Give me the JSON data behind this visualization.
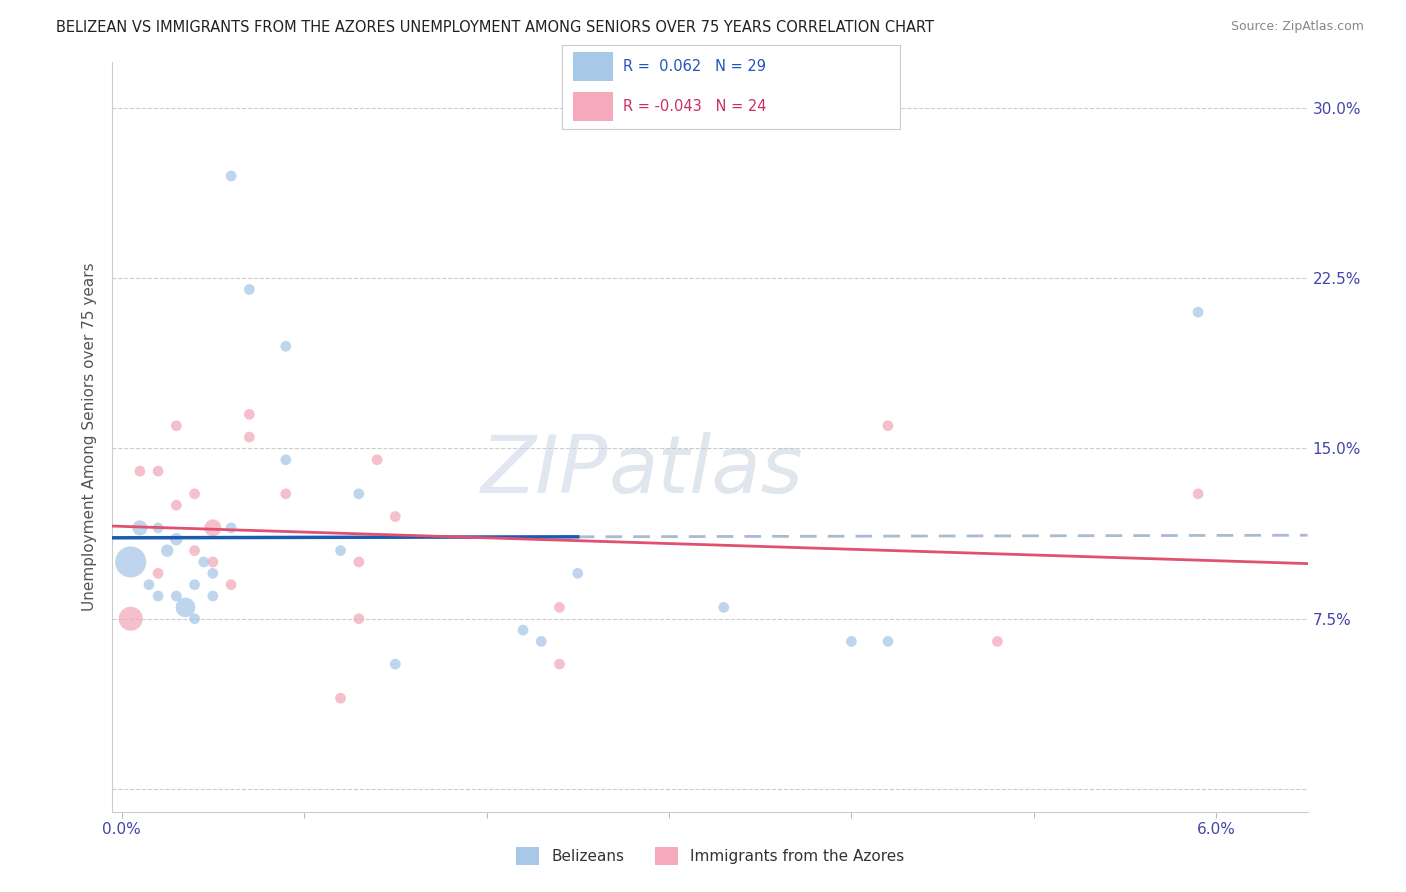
{
  "title": "BELIZEAN VS IMMIGRANTS FROM THE AZORES UNEMPLOYMENT AMONG SENIORS OVER 75 YEARS CORRELATION CHART",
  "source": "Source: ZipAtlas.com",
  "ylabel": "Unemployment Among Seniors over 75 years",
  "x_ticks": [
    0.0,
    0.01,
    0.02,
    0.03,
    0.04,
    0.05,
    0.06
  ],
  "x_tick_labels": [
    "0.0%",
    "",
    "",
    "",
    "",
    "",
    "6.0%"
  ],
  "y_ticks": [
    0.0,
    0.075,
    0.15,
    0.225,
    0.3
  ],
  "y_tick_labels": [
    "",
    "7.5%",
    "15.0%",
    "22.5%",
    "30.0%"
  ],
  "xlim": [
    -0.0005,
    0.065
  ],
  "ylim": [
    -0.01,
    0.32
  ],
  "belizean_R": "0.062",
  "belizean_N": "29",
  "azores_R": "-0.043",
  "azores_N": "24",
  "belizean_color": "#a8c8e8",
  "azores_color": "#f4aabb",
  "belizean_line_color": "#1a5cb0",
  "azores_line_color": "#e05070",
  "watermark_zip": "ZIP",
  "watermark_atlas": "atlas",
  "belizean_x": [
    0.0005,
    0.001,
    0.0015,
    0.002,
    0.002,
    0.0025,
    0.003,
    0.003,
    0.0035,
    0.004,
    0.004,
    0.0045,
    0.005,
    0.005,
    0.006,
    0.006,
    0.007,
    0.009,
    0.009,
    0.012,
    0.013,
    0.015,
    0.022,
    0.023,
    0.025,
    0.033,
    0.04,
    0.042,
    0.059
  ],
  "belizean_y": [
    0.1,
    0.115,
    0.09,
    0.115,
    0.085,
    0.105,
    0.11,
    0.085,
    0.08,
    0.09,
    0.075,
    0.1,
    0.085,
    0.095,
    0.115,
    0.27,
    0.22,
    0.195,
    0.145,
    0.105,
    0.13,
    0.055,
    0.07,
    0.065,
    0.095,
    0.08,
    0.065,
    0.065,
    0.21
  ],
  "belizean_sizes": [
    500,
    120,
    60,
    60,
    60,
    80,
    80,
    60,
    200,
    60,
    60,
    60,
    60,
    60,
    60,
    60,
    60,
    60,
    60,
    60,
    60,
    60,
    60,
    60,
    60,
    60,
    60,
    60,
    60
  ],
  "azores_x": [
    0.0005,
    0.001,
    0.002,
    0.002,
    0.003,
    0.003,
    0.004,
    0.004,
    0.005,
    0.005,
    0.006,
    0.007,
    0.007,
    0.009,
    0.012,
    0.013,
    0.013,
    0.014,
    0.015,
    0.024,
    0.024,
    0.042,
    0.048,
    0.059
  ],
  "azores_y": [
    0.075,
    0.14,
    0.095,
    0.14,
    0.16,
    0.125,
    0.13,
    0.105,
    0.115,
    0.1,
    0.09,
    0.155,
    0.165,
    0.13,
    0.04,
    0.1,
    0.075,
    0.145,
    0.12,
    0.08,
    0.055,
    0.16,
    0.065,
    0.13
  ],
  "azores_sizes": [
    300,
    60,
    60,
    60,
    60,
    60,
    60,
    60,
    150,
    60,
    60,
    60,
    60,
    60,
    60,
    60,
    60,
    60,
    60,
    60,
    60,
    60,
    60,
    60
  ]
}
